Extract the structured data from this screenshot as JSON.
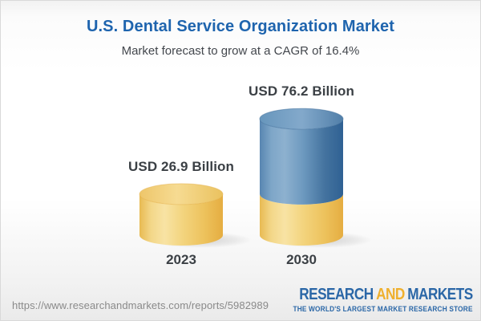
{
  "header": {
    "title": "U.S. Dental Service Organization Market",
    "subtitle": "Market forecast to grow at a CAGR of 16.4%"
  },
  "chart_data": {
    "type": "bar",
    "variant": "3d-cylinder",
    "title": "U.S. Dental Service Organization Market",
    "subtitle": "Market forecast to grow at a CAGR of 16.4%",
    "cagr_percent": 16.4,
    "unit": "USD Billion",
    "categories": [
      "2023",
      "2030"
    ],
    "values": [
      26.9,
      76.2
    ],
    "value_labels": [
      "USD 26.9 Billion",
      "USD 76.2 Billion"
    ],
    "series": [
      {
        "name": "base-yellow-segment",
        "color": "#f0cd6f",
        "values": [
          26.9,
          26.9
        ]
      },
      {
        "name": "growth-blue-segment",
        "color": "#4f7ea9",
        "values": [
          0,
          49.3
        ]
      }
    ],
    "legend": "none",
    "axes": "none",
    "grid": false
  },
  "footer": {
    "url": "https://www.researchandmarkets.com/reports/5982989",
    "logo": {
      "word1": "RESEARCH",
      "word2": "AND",
      "word3": "MARKETS",
      "tagline": "THE WORLD'S LARGEST MARKET RESEARCH STORE"
    }
  },
  "colors": {
    "title_blue": "#1e64ae",
    "text_dark": "#3b4045",
    "url_gray": "#8a8a8a",
    "logo_blue": "#2b67a7",
    "logo_orange": "#efb02e",
    "bar_yellow": "#f0cd6f",
    "bar_blue": "#4f7ea9",
    "background_top": "#f2f2f2",
    "background_bottom": "#eaeaea"
  }
}
